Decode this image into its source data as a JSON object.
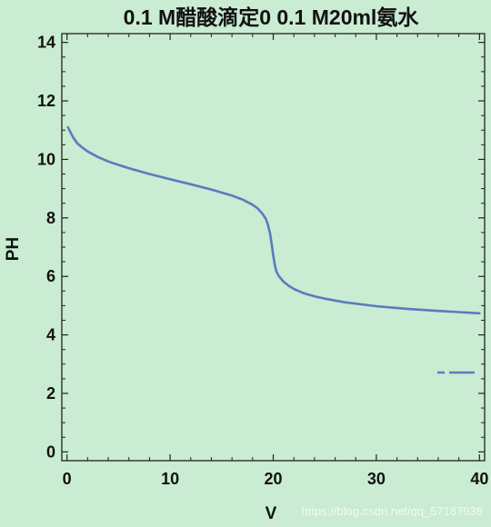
{
  "chart_data": {
    "type": "line",
    "title": "0.1 M醋酸滴定0 0.1 M20ml氨水",
    "xlabel": "V",
    "ylabel": "PH",
    "xlim": [
      -0.5,
      40.5
    ],
    "ylim": [
      -0.3,
      14.3
    ],
    "xticks": [
      0,
      10,
      20,
      30,
      40
    ],
    "yticks": [
      0,
      2,
      4,
      6,
      8,
      10,
      12,
      14
    ],
    "grid": false,
    "legend": "bottom-right",
    "line_color": "#5b7bbd",
    "series": [
      {
        "x": [
          0.1,
          0.3,
          0.6,
          1,
          1.5,
          2,
          3,
          4,
          5,
          6,
          8,
          10,
          12,
          14,
          16,
          17,
          18,
          18.5,
          19,
          19.3,
          19.5,
          19.7,
          19.85,
          20,
          20.15,
          20.3,
          20.5,
          20.8,
          21,
          21.5,
          22,
          23,
          24,
          25,
          27,
          30,
          33,
          36,
          38,
          40
        ],
        "y": [
          11.1,
          10.95,
          10.75,
          10.55,
          10.4,
          10.27,
          10.08,
          9.93,
          9.81,
          9.7,
          9.5,
          9.32,
          9.15,
          8.97,
          8.76,
          8.63,
          8.45,
          8.32,
          8.12,
          7.95,
          7.75,
          7.45,
          7.1,
          6.72,
          6.4,
          6.18,
          6.03,
          5.9,
          5.82,
          5.68,
          5.57,
          5.42,
          5.32,
          5.24,
          5.11,
          4.98,
          4.89,
          4.82,
          4.78,
          4.74
        ]
      }
    ]
  },
  "watermark": "https://blog.csdn.net/qq_57187936"
}
